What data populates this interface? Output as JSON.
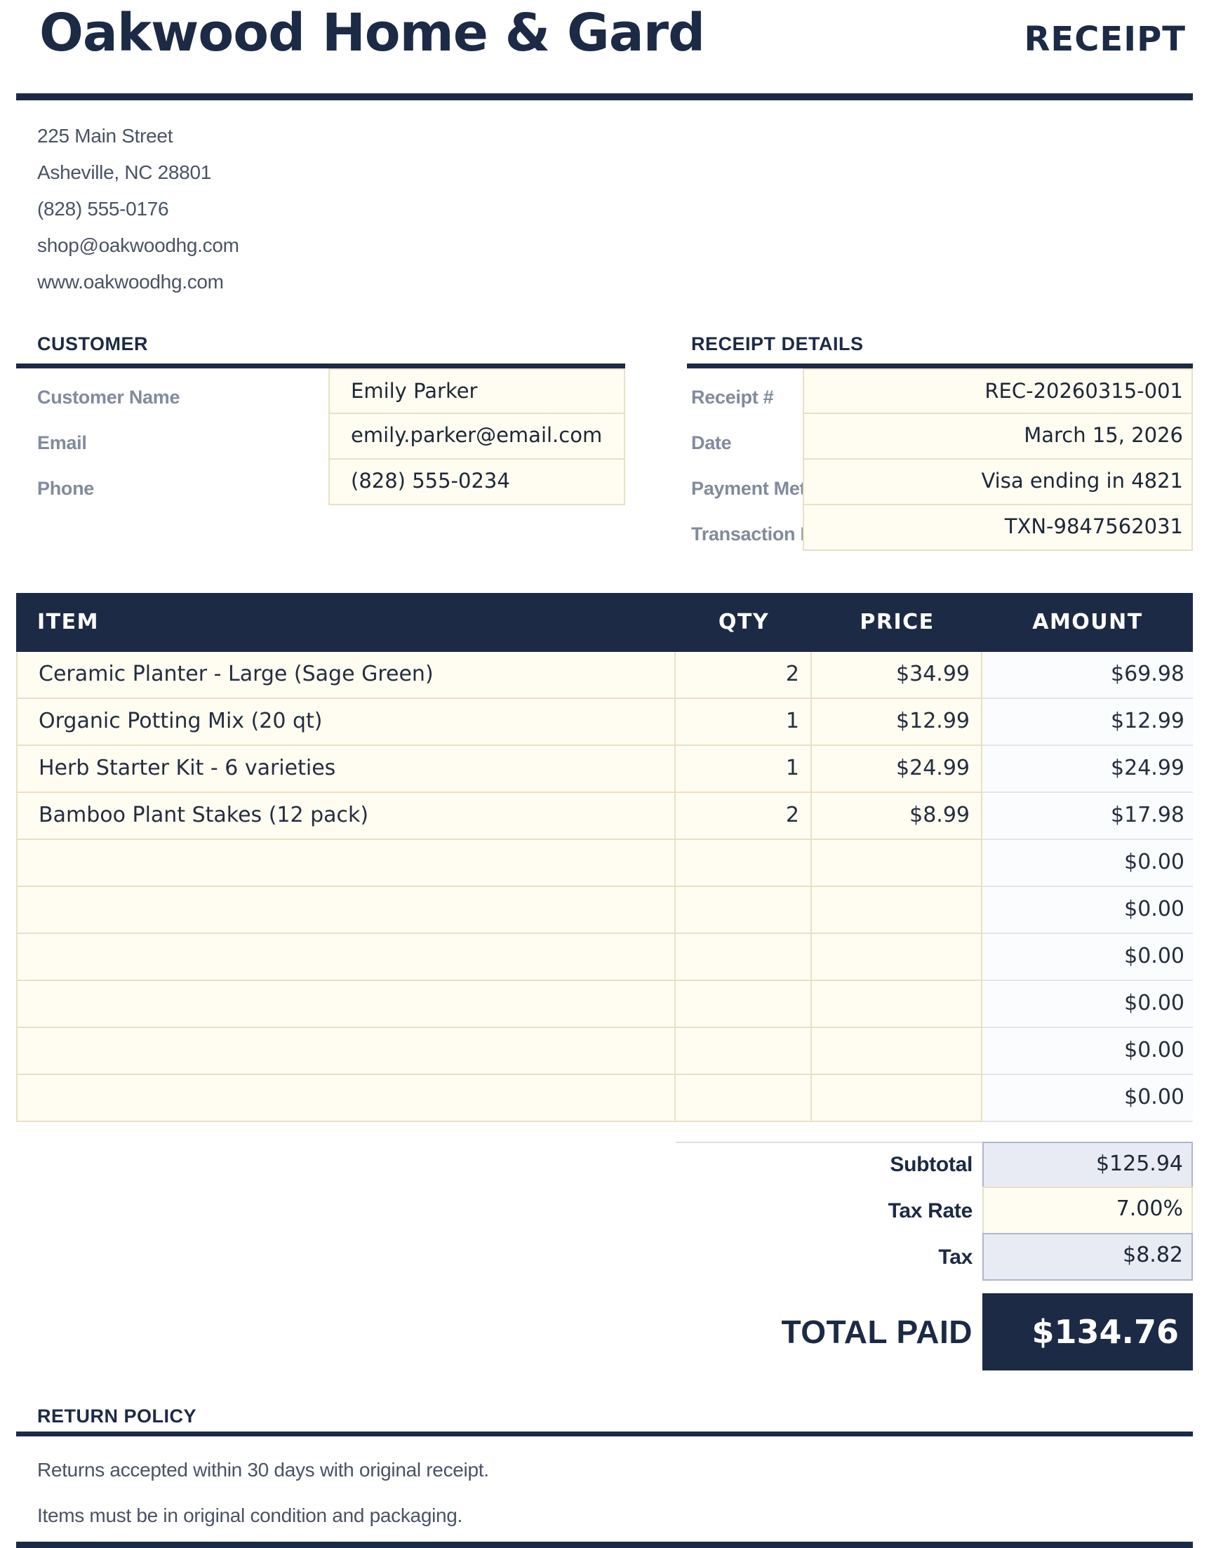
{
  "header": {
    "business_name": "Oakwood Home & Gard",
    "doc_type": "RECEIPT"
  },
  "business": {
    "address_lines": [
      "225 Main Street",
      "Asheville, NC 28801",
      "(828) 555-0176",
      "shop@oakwoodhg.com",
      "www.oakwoodhg.com"
    ]
  },
  "customer": {
    "heading": "CUSTOMER",
    "fields": [
      {
        "label": "Customer Name",
        "value": "Emily Parker"
      },
      {
        "label": "Email",
        "value": "emily.parker@email.com"
      },
      {
        "label": "Phone",
        "value": "(828) 555-0234"
      }
    ]
  },
  "receipt_details": {
    "heading": "RECEIPT DETAILS",
    "fields": [
      {
        "label": "Receipt #",
        "value": "REC-20260315-001"
      },
      {
        "label": "Date",
        "value": "March 15, 2026"
      },
      {
        "label": "Payment Method",
        "value": "Visa ending in 4821"
      },
      {
        "label": "Transaction ID",
        "value": "TXN-9847562031"
      }
    ]
  },
  "items_table": {
    "columns": {
      "item": "ITEM",
      "qty": "QTY",
      "price": "PRICE",
      "amount": "AMOUNT"
    },
    "rows": [
      {
        "item": "Ceramic Planter - Large (Sage Green)",
        "qty": "2",
        "price": "$34.99",
        "amount": "$69.98"
      },
      {
        "item": "Organic Potting Mix (20 qt)",
        "qty": "1",
        "price": "$12.99",
        "amount": "$12.99"
      },
      {
        "item": "Herb Starter Kit - 6 varieties",
        "qty": "1",
        "price": "$24.99",
        "amount": "$24.99"
      },
      {
        "item": "Bamboo Plant Stakes (12 pack)",
        "qty": "2",
        "price": "$8.99",
        "amount": "$17.98"
      },
      {
        "item": "",
        "qty": "",
        "price": "",
        "amount": "$0.00"
      },
      {
        "item": "",
        "qty": "",
        "price": "",
        "amount": "$0.00"
      },
      {
        "item": "",
        "qty": "",
        "price": "",
        "amount": "$0.00"
      },
      {
        "item": "",
        "qty": "",
        "price": "",
        "amount": "$0.00"
      },
      {
        "item": "",
        "qty": "",
        "price": "",
        "amount": "$0.00"
      },
      {
        "item": "",
        "qty": "",
        "price": "",
        "amount": "$0.00"
      }
    ]
  },
  "totals": {
    "subtotal_label": "Subtotal",
    "subtotal_value": "$125.94",
    "tax_rate_label": "Tax Rate",
    "tax_rate_value": "7.00%",
    "tax_label": "Tax",
    "tax_value": "$8.82",
    "total_label": "TOTAL PAID",
    "total_value": "$134.76"
  },
  "return_policy": {
    "heading": "RETURN POLICY",
    "lines": [
      "Returns accepted within 30 days with original receipt.",
      "Items must be in original condition and packaging."
    ]
  },
  "colors": {
    "navy": "#1C2A45",
    "cream_bg": "#FFFDF2",
    "cream_border": "#E8E1C6",
    "lavender_bg": "#E8EBF4",
    "lavender_border": "#AFB6CE",
    "amount_bg": "#FBFCFD",
    "label_gray": "#828B9D",
    "body_gray": "#4A5365"
  }
}
